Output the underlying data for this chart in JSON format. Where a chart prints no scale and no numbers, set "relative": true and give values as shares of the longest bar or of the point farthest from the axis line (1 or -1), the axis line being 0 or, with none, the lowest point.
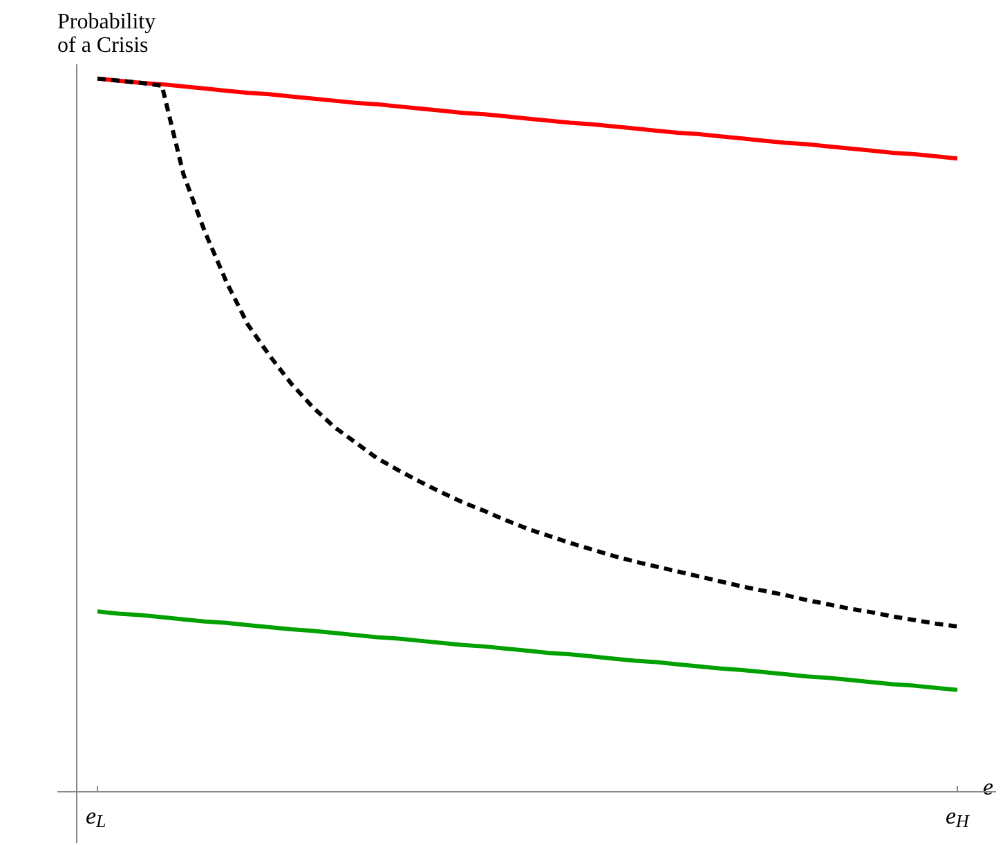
{
  "chart_data": {
    "type": "line",
    "relative": true,
    "ylabel": "Probability\nof a Crisis",
    "xlabel": "e",
    "grid": false,
    "marker": "none",
    "categories": [
      "e$_{L}$",
      null,
      null,
      null,
      null,
      null,
      null,
      null,
      null,
      null,
      null,
      null,
      null,
      null,
      null,
      null,
      null,
      null,
      null,
      null,
      null,
      null,
      null,
      null,
      null,
      null,
      null,
      null,
      null,
      null,
      null,
      null,
      null,
      null,
      null,
      null,
      null,
      null,
      null,
      null,
      "e$_{H}$"
    ],
    "series": [
      {
        "color": "#ff0000",
        "line_style": "solid",
        "values": [
          1.0,
          0.997,
          0.994,
          0.992,
          0.989,
          0.986,
          0.983,
          0.98,
          0.978,
          0.975,
          0.972,
          0.969,
          0.966,
          0.964,
          0.961,
          0.958,
          0.955,
          0.952,
          0.95,
          0.947,
          0.944,
          0.941,
          0.938,
          0.936,
          0.933,
          0.93,
          0.927,
          0.924,
          0.922,
          0.919,
          0.916,
          0.913,
          0.91,
          0.908,
          0.905,
          0.902,
          0.899,
          0.896,
          0.894,
          0.891,
          0.888
        ]
      },
      {
        "color": "#000000",
        "line_style": "dashed",
        "values": [
          1.0,
          0.997,
          0.994,
          0.99,
          0.866,
          0.785,
          0.715,
          0.655,
          0.612,
          0.573,
          0.54,
          0.512,
          0.49,
          0.468,
          0.451,
          0.435,
          0.42,
          0.406,
          0.394,
          0.381,
          0.369,
          0.359,
          0.349,
          0.34,
          0.331,
          0.323,
          0.316,
          0.309,
          0.302,
          0.295,
          0.288,
          0.282,
          0.276,
          0.269,
          0.263,
          0.257,
          0.252,
          0.246,
          0.241,
          0.236,
          0.232
        ]
      },
      {
        "color": "#00a000",
        "line_style": "solid",
        "values": [
          0.253,
          0.25,
          0.248,
          0.245,
          0.242,
          0.239,
          0.237,
          0.234,
          0.231,
          0.228,
          0.226,
          0.223,
          0.22,
          0.217,
          0.215,
          0.212,
          0.209,
          0.206,
          0.204,
          0.201,
          0.198,
          0.195,
          0.193,
          0.19,
          0.187,
          0.184,
          0.182,
          0.179,
          0.176,
          0.173,
          0.171,
          0.168,
          0.165,
          0.162,
          0.16,
          0.157,
          0.154,
          0.151,
          0.149,
          0.146,
          0.143
        ]
      }
    ]
  }
}
